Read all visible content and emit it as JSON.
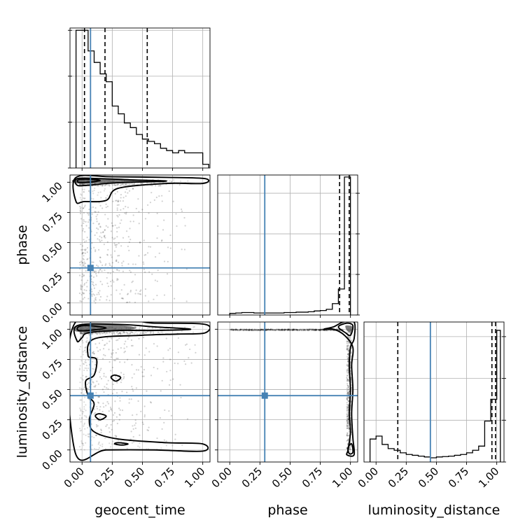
{
  "chart_data": {
    "type": "corner",
    "parameters": [
      "geocent_time",
      "phase",
      "luminosity_distance"
    ],
    "tick_labels": [
      "0.00",
      "0.25",
      "0.50",
      "0.75",
      "1.00"
    ],
    "axis_range": [
      -0.1,
      1.06
    ],
    "truth_color": "#4682b4",
    "truths": {
      "geocent_time": 0.07,
      "phase": 0.29,
      "luminosity_distance": 0.45
    },
    "histograms": [
      {
        "param": "geocent_time",
        "bin_edges": [
          -0.05,
          0.0,
          0.05,
          0.1,
          0.15,
          0.2,
          0.25,
          0.3,
          0.35,
          0.4,
          0.45,
          0.5,
          0.55,
          0.6,
          0.65,
          0.7,
          0.75,
          0.8,
          0.85,
          0.9,
          0.95,
          1.0,
          1.05
        ],
        "counts": [
          3.0,
          3.0,
          2.55,
          2.3,
          2.05,
          1.88,
          1.35,
          1.18,
          0.98,
          0.88,
          0.73,
          0.63,
          0.58,
          0.53,
          0.43,
          0.38,
          0.33,
          0.38,
          0.33,
          0.33,
          0.33,
          0.08
        ],
        "quantiles": [
          0.02,
          0.19,
          0.54
        ],
        "ylim": [
          0,
          3.05
        ]
      },
      {
        "param": "phase",
        "bin_edges": [
          0.0,
          0.05,
          0.1,
          0.15,
          0.2,
          0.25,
          0.3,
          0.35,
          0.4,
          0.45,
          0.5,
          0.55,
          0.6,
          0.65,
          0.7,
          0.75,
          0.8,
          0.85,
          0.9,
          0.95,
          1.0
        ],
        "counts": [
          0.04,
          0.05,
          0.06,
          0.06,
          0.05,
          0.05,
          0.05,
          0.05,
          0.05,
          0.06,
          0.06,
          0.07,
          0.07,
          0.08,
          0.1,
          0.11,
          0.14,
          0.28,
          0.64,
          3.4
        ],
        "quantiles": [
          0.91,
          0.99
        ],
        "ylim": [
          0,
          3.45
        ]
      },
      {
        "param": "luminosity_distance",
        "bin_edges": [
          -0.05,
          0.0,
          0.05,
          0.1,
          0.15,
          0.2,
          0.25,
          0.3,
          0.35,
          0.4,
          0.45,
          0.5,
          0.55,
          0.6,
          0.65,
          0.7,
          0.75,
          0.8,
          0.85,
          0.9,
          0.95,
          1.0,
          1.03
        ],
        "counts": [
          0.55,
          0.62,
          0.42,
          0.32,
          0.28,
          0.22,
          0.18,
          0.16,
          0.14,
          0.12,
          0.1,
          0.12,
          0.13,
          0.14,
          0.16,
          0.18,
          0.22,
          0.28,
          0.38,
          0.98,
          1.5,
          3.15
        ],
        "quantiles": [
          0.18,
          0.96,
          0.99
        ],
        "ylim": [
          0,
          3.35
        ]
      }
    ],
    "contours": [
      {
        "x": "geocent_time",
        "y": "phase",
        "levels": [
          [
            [
              -0.05,
              1.04
            ],
            [
              0.25,
              1.045
            ],
            [
              0.7,
              1.04
            ],
            [
              1.02,
              1.03
            ],
            [
              1.0,
              0.99
            ],
            [
              0.7,
              0.99
            ],
            [
              0.3,
              0.95
            ],
            [
              0.2,
              0.85
            ],
            [
              0.02,
              0.84
            ],
            [
              -0.05,
              0.84
            ]
          ],
          [
            [
              -0.04,
              1.03
            ],
            [
              0.15,
              1.03
            ],
            [
              0.4,
              1.02
            ],
            [
              0.7,
              1.01
            ],
            [
              0.4,
              1.0
            ],
            [
              0.2,
              0.99
            ],
            [
              0.05,
              0.975
            ],
            [
              -0.04,
              0.975
            ]
          ],
          [
            [
              -0.03,
              1.02
            ],
            [
              0.05,
              1.025
            ],
            [
              0.15,
              1.015
            ],
            [
              0.05,
              1.0
            ],
            [
              -0.03,
              1.0
            ]
          ]
        ],
        "density_core": [
          [
            -0.04,
            1.03
          ],
          [
            0.3,
            1.03
          ],
          [
            0.55,
            1.01
          ],
          [
            0.3,
            1.0
          ],
          [
            -0.04,
            0.99
          ]
        ]
      },
      {
        "x": "geocent_time",
        "y": "luminosity_distance",
        "levels": [
          [
            [
              -0.06,
              1.05
            ],
            [
              0.6,
              1.05
            ],
            [
              1.02,
              1.04
            ],
            [
              1.02,
              0.97
            ],
            [
              0.8,
              0.96
            ],
            [
              0.5,
              0.95
            ],
            [
              0.1,
              0.92
            ],
            [
              0.05,
              0.78
            ],
            [
              0.12,
              0.75
            ],
            [
              0.1,
              0.62
            ],
            [
              0.03,
              0.57
            ],
            [
              0.05,
              0.45
            ],
            [
              0.1,
              0.38
            ],
            [
              0.06,
              0.25
            ],
            [
              0.1,
              0.15
            ],
            [
              0.3,
              0.09
            ],
            [
              0.7,
              0.06
            ],
            [
              1.0,
              0.05
            ],
            [
              1.0,
              -0.01
            ],
            [
              0.6,
              0.0
            ],
            [
              0.2,
              0.0
            ],
            [
              -0.06,
              -0.01
            ]
          ],
          [
            [
              -0.04,
              1.03
            ],
            [
              0.3,
              1.04
            ],
            [
              0.6,
              1.02
            ],
            [
              0.9,
              1.0
            ],
            [
              0.6,
              0.99
            ],
            [
              0.3,
              0.99
            ],
            [
              0.05,
              0.97
            ],
            [
              0.0,
              0.93
            ],
            [
              -0.04,
              0.9
            ]
          ],
          [
            [
              -0.03,
              1.02
            ],
            [
              0.05,
              1.03
            ],
            [
              0.2,
              1.01
            ],
            [
              0.05,
              0.99
            ],
            [
              -0.03,
              0.99
            ]
          ],
          [
            [
              0.27,
              0.62
            ],
            [
              0.32,
              0.6
            ],
            [
              0.28,
              0.57
            ],
            [
              0.24,
              0.6
            ]
          ],
          [
            [
              0.14,
              0.3
            ],
            [
              0.2,
              0.28
            ],
            [
              0.15,
              0.25
            ],
            [
              0.11,
              0.28
            ]
          ],
          [
            [
              0.3,
              0.06
            ],
            [
              0.38,
              0.05
            ],
            [
              0.33,
              0.04
            ],
            [
              0.27,
              0.05
            ]
          ]
        ],
        "density_core": [
          [
            -0.04,
            1.03
          ],
          [
            0.25,
            1.04
          ],
          [
            0.45,
            1.01
          ],
          [
            0.25,
            0.98
          ],
          [
            -0.04,
            0.98
          ]
        ]
      },
      {
        "x": "phase",
        "y": "luminosity_distance",
        "levels": [
          [
            [
              0.78,
              1.0
            ],
            [
              0.86,
              1.02
            ],
            [
              0.94,
              1.06
            ],
            [
              1.03,
              1.06
            ],
            [
              1.03,
              0.92
            ],
            [
              1.0,
              0.85
            ],
            [
              0.99,
              0.7
            ],
            [
              1.0,
              0.5
            ],
            [
              0.99,
              0.3
            ],
            [
              1.0,
              0.15
            ],
            [
              0.98,
              0.0
            ],
            [
              0.97,
              -0.04
            ],
            [
              1.03,
              -0.04
            ],
            [
              1.02,
              0.1
            ],
            [
              1.01,
              0.3
            ],
            [
              1.02,
              0.5
            ],
            [
              1.01,
              0.7
            ],
            [
              1.02,
              0.85
            ],
            [
              0.95,
              0.95
            ],
            [
              0.86,
              1.0
            ]
          ],
          [
            [
              0.9,
              1.02
            ],
            [
              0.97,
              1.05
            ],
            [
              1.02,
              1.03
            ],
            [
              1.0,
              0.95
            ],
            [
              0.96,
              0.97
            ]
          ],
          [
            [
              0.98,
              0.02
            ],
            [
              1.01,
              0.05
            ],
            [
              1.02,
              -0.02
            ],
            [
              0.99,
              -0.03
            ]
          ]
        ],
        "density_core": [
          [
            0.96,
            1.03
          ],
          [
            1.02,
            1.02
          ],
          [
            1.0,
            0.98
          ],
          [
            0.97,
            0.99
          ]
        ]
      }
    ]
  }
}
